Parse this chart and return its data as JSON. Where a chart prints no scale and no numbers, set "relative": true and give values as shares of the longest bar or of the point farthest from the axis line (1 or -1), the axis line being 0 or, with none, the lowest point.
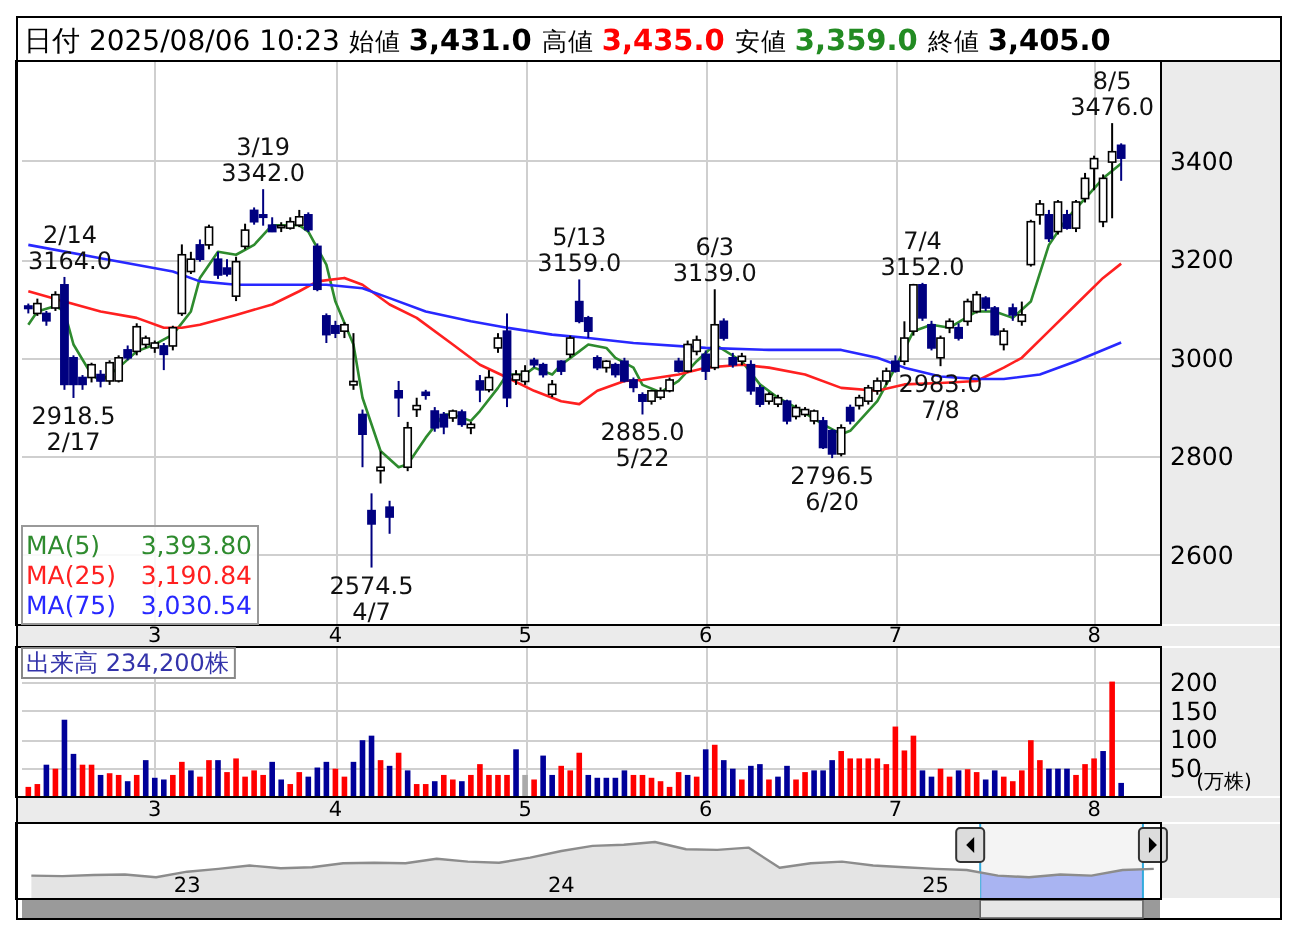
{
  "chart_data": [
    {
      "type": "candlestick",
      "title": "日付 2025/08/06 10:23 始値 3,431.0 高値 3,435.0 安値 3,359.0 終値 3,405.0",
      "categories": [
        null,
        null,
        null,
        null,
        null,
        null,
        null,
        null,
        null,
        null,
        null,
        null,
        null,
        null,
        "3",
        null,
        null,
        null,
        null,
        null,
        null,
        null,
        null,
        null,
        null,
        null,
        null,
        null,
        null,
        null,
        null,
        null,
        null,
        null,
        "4",
        null,
        null,
        null,
        null,
        null,
        null,
        null,
        null,
        null,
        null,
        null,
        null,
        null,
        null,
        null,
        null,
        null,
        null,
        null,
        null,
        "5",
        null,
        null,
        null,
        null,
        null,
        null,
        null,
        null,
        null,
        null,
        null,
        null,
        null,
        null,
        null,
        null,
        null,
        null,
        null,
        "6",
        null,
        null,
        null,
        null,
        null,
        null,
        null,
        null,
        null,
        null,
        null,
        null,
        null,
        null,
        null,
        null,
        null,
        null,
        null,
        null,
        "7",
        null,
        null,
        null,
        null,
        null,
        null,
        null,
        null,
        null,
        null,
        null,
        null,
        null,
        null,
        null,
        null,
        null,
        null,
        null,
        null,
        null,
        "8",
        null,
        null,
        null
      ],
      "ohlc": [
        [
          3105,
          3110,
          3090,
          3100
        ],
        [
          3090,
          3120,
          3085,
          3110
        ],
        [
          3090,
          3095,
          3065,
          3075
        ],
        [
          3101,
          3135,
          3095,
          3128
        ],
        [
          3148,
          3164,
          2935,
          2946
        ],
        [
          3000,
          3005,
          2918.5,
          2946
        ],
        [
          2960,
          2965,
          2935,
          2946
        ],
        [
          2960,
          2990,
          2950,
          2986
        ],
        [
          2966,
          2975,
          2940,
          2953
        ],
        [
          2953,
          2995,
          2945,
          2990
        ],
        [
          2953,
          3005,
          2950,
          3000
        ],
        [
          3016,
          3025,
          2995,
          3000
        ],
        [
          3013,
          3070,
          3005,
          3063
        ],
        [
          3027,
          3045,
          3020,
          3040
        ],
        [
          3020,
          3035,
          3010,
          3030
        ],
        [
          3024,
          3030,
          2975,
          3007
        ],
        [
          3024,
          3065,
          3015,
          3061
        ],
        [
          3090,
          3230,
          3085,
          3209
        ],
        [
          3175,
          3215,
          3170,
          3200
        ],
        [
          3229,
          3240,
          3195,
          3200
        ],
        [
          3229,
          3270,
          3220,
          3265
        ],
        [
          3200,
          3215,
          3160,
          3168
        ],
        [
          3182,
          3200,
          3165,
          3170
        ],
        [
          3125,
          3205,
          3115,
          3195
        ],
        [
          3226,
          3272,
          3220,
          3259
        ],
        [
          3299,
          3305,
          3270,
          3276
        ],
        [
          3290,
          3342,
          3268,
          3285
        ],
        [
          3269,
          3285,
          3255,
          3256
        ],
        [
          3265,
          3275,
          3255,
          3268
        ],
        [
          3263,
          3285,
          3260,
          3276
        ],
        [
          3269,
          3300,
          3265,
          3286
        ],
        [
          3290,
          3295,
          3255,
          3260
        ],
        [
          3226,
          3232,
          3135,
          3139
        ],
        [
          3085,
          3090,
          3030,
          3047
        ],
        [
          3065,
          3075,
          3040,
          3050
        ],
        [
          3054,
          3072,
          3040,
          3067
        ],
        [
          2945,
          3050,
          2935,
          2952
        ],
        [
          2885,
          2895,
          2778,
          2845
        ],
        [
          2690,
          2725,
          2574.5,
          2663
        ],
        [
          2771,
          2810,
          2745,
          2778
        ],
        [
          2697,
          2710,
          2643,
          2677
        ],
        [
          2933,
          2953,
          2880,
          2919
        ],
        [
          2778,
          2870,
          2770,
          2858
        ],
        [
          2895,
          2919,
          2880,
          2903
        ],
        [
          2930,
          2935,
          2915,
          2924
        ],
        [
          2892,
          2900,
          2850,
          2858
        ],
        [
          2885,
          2890,
          2845,
          2860
        ],
        [
          2878,
          2895,
          2870,
          2892
        ],
        [
          2890,
          2895,
          2860,
          2865
        ],
        [
          2858,
          2870,
          2845,
          2865
        ],
        [
          2953,
          2965,
          2910,
          2935
        ],
        [
          2935,
          2975,
          2930,
          2960
        ],
        [
          3020,
          3050,
          3010,
          3040
        ],
        [
          3054,
          3090,
          2900,
          2919
        ],
        [
          2955,
          2975,
          2945,
          2966
        ],
        [
          2952,
          2985,
          2945,
          2973
        ],
        [
          2995,
          3000,
          2980,
          2986
        ],
        [
          2986,
          2990,
          2960,
          2966
        ],
        [
          2926,
          2955,
          2920,
          2946
        ],
        [
          2993,
          2995,
          2965,
          2973
        ],
        [
          3007,
          3045,
          3000,
          3040
        ],
        [
          3114,
          3159,
          3070,
          3074
        ],
        [
          3081,
          3085,
          3040,
          3054
        ],
        [
          3000,
          3005,
          2975,
          2980
        ],
        [
          2980,
          2995,
          2970,
          2993
        ],
        [
          2986,
          2990,
          2960,
          2966
        ],
        [
          2993,
          3000,
          2950,
          2953
        ],
        [
          2955,
          2960,
          2930,
          2940
        ],
        [
          2925,
          2930,
          2885,
          2912
        ],
        [
          2912,
          2935,
          2905,
          2933
        ],
        [
          2920,
          2940,
          2915,
          2933
        ],
        [
          2933,
          2960,
          2930,
          2955
        ],
        [
          2993,
          3000,
          2970,
          2973
        ],
        [
          2973,
          3035,
          2970,
          3027
        ],
        [
          3013,
          3045,
          3005,
          3036
        ],
        [
          3007,
          3015,
          2955,
          2973
        ],
        [
          2980,
          3139,
          2975,
          3067
        ],
        [
          3074,
          3080,
          3035,
          3040
        ],
        [
          3000,
          3010,
          2980,
          2986
        ],
        [
          2993,
          3010,
          2985,
          3003
        ],
        [
          2986,
          2995,
          2925,
          2933
        ],
        [
          2939,
          2945,
          2900,
          2906
        ],
        [
          2912,
          2930,
          2905,
          2926
        ],
        [
          2906,
          2925,
          2900,
          2919
        ],
        [
          2912,
          2915,
          2865,
          2872
        ],
        [
          2881,
          2905,
          2875,
          2899
        ],
        [
          2885,
          2900,
          2880,
          2895
        ],
        [
          2872,
          2895,
          2865,
          2892
        ],
        [
          2872,
          2880,
          2815,
          2818
        ],
        [
          2852,
          2855,
          2796.5,
          2805
        ],
        [
          2805,
          2865,
          2800,
          2858
        ],
        [
          2899,
          2905,
          2865,
          2872
        ],
        [
          2903,
          2925,
          2895,
          2919
        ],
        [
          2912,
          2945,
          2905,
          2939
        ],
        [
          2933,
          2960,
          2925,
          2953
        ],
        [
          2953,
          2980,
          2945,
          2973
        ],
        [
          2993,
          3005,
          2970,
          2973
        ],
        [
          2993,
          3074,
          2985,
          3040
        ],
        [
          3054,
          3150,
          3045,
          3148
        ],
        [
          3148,
          3152,
          3075,
          3081
        ],
        [
          3067,
          3075,
          3015,
          3020
        ],
        [
          3000,
          3045,
          2983,
          3040
        ],
        [
          3061,
          3080,
          3050,
          3074
        ],
        [
          3061,
          3070,
          3035,
          3040
        ],
        [
          3074,
          3120,
          3065,
          3114
        ],
        [
          3094,
          3135,
          3090,
          3128
        ],
        [
          3121,
          3125,
          3095,
          3101
        ],
        [
          3101,
          3105,
          3045,
          3047
        ],
        [
          3027,
          3060,
          3015,
          3054
        ],
        [
          3101,
          3110,
          3075,
          3087
        ],
        [
          3074,
          3114,
          3065,
          3087
        ],
        [
          3189,
          3280,
          3185,
          3276
        ],
        [
          3290,
          3320,
          3270,
          3312
        ],
        [
          3290,
          3300,
          3235,
          3242
        ],
        [
          3256,
          3320,
          3250,
          3316
        ],
        [
          3290,
          3300,
          3260,
          3263
        ],
        [
          3263,
          3320,
          3255,
          3316
        ],
        [
          3323,
          3375,
          3315,
          3364
        ],
        [
          3384,
          3410,
          3340,
          3404
        ],
        [
          3276,
          3372,
          3265,
          3364
        ],
        [
          3397,
          3476,
          3283,
          3418
        ],
        [
          3431,
          3435,
          3359,
          3405
        ]
      ],
      "colors": [
        "#000080",
        "#ffffff",
        "#000080",
        "#ffffff",
        "#000080",
        "#000080",
        "#000080",
        "#ffffff",
        "#000080",
        "#ffffff",
        "#ffffff",
        "#000080",
        "#ffffff",
        "#ffffff",
        "#ffffff",
        "#000080",
        "#ffffff",
        "#ffffff",
        "#ffffff",
        "#000080",
        "#ffffff",
        "#000080",
        "#000080",
        "#ffffff",
        "#ffffff",
        "#000080",
        "#000080",
        "#000080",
        "#ffffff",
        "#ffffff",
        "#ffffff",
        "#000080",
        "#000080",
        "#000080",
        "#000080",
        "#ffffff",
        "#ffffff",
        "#000080",
        "#000080",
        "#ffffff",
        "#000080",
        "#000080",
        "#ffffff",
        "#ffffff",
        "#000080",
        "#000080",
        "#000080",
        "#ffffff",
        "#000080",
        "#ffffff",
        "#000080",
        "#ffffff",
        "#ffffff",
        "#000080",
        "#ffffff",
        "#ffffff",
        "#000080",
        "#000080",
        "#ffffff",
        "#000080",
        "#ffffff",
        "#000080",
        "#000080",
        "#000080",
        "#ffffff",
        "#000080",
        "#000080",
        "#000080",
        "#000080",
        "#ffffff",
        "#ffffff",
        "#ffffff",
        "#000080",
        "#ffffff",
        "#ffffff",
        "#000080",
        "#ffffff",
        "#000080",
        "#000080",
        "#ffffff",
        "#000080",
        "#000080",
        "#ffffff",
        "#ffffff",
        "#000080",
        "#ffffff",
        "#ffffff",
        "#ffffff",
        "#000080",
        "#000080",
        "#ffffff",
        "#000080",
        "#ffffff",
        "#ffffff",
        "#ffffff",
        "#ffffff",
        "#000080",
        "#ffffff",
        "#ffffff",
        "#000080",
        "#000080",
        "#ffffff",
        "#ffffff",
        "#000080",
        "#ffffff",
        "#ffffff",
        "#000080",
        "#000080",
        "#ffffff",
        "#000080",
        "#ffffff",
        "#ffffff",
        "#ffffff",
        "#000080",
        "#ffffff",
        "#000080",
        "#ffffff",
        "#ffffff",
        "#ffffff",
        "#ffffff",
        "#ffffff",
        "#000080"
      ],
      "series": [
        {
          "name": "MA(5)",
          "type": "line",
          "color": "#2e8b2e",
          "values": [
            3067,
            3094,
            null,
            3105,
            3094,
            3027,
            null,
            2966,
            2953,
            null,
            2980,
            null,
            3013,
            null,
            3027,
            null,
            3047,
            null,
            3094,
            3162,
            null,
            3215,
            null,
            3209,
            null,
            3229,
            null,
            3269,
            null,
            null,
            3269,
            3256,
            null,
            3189,
            3114,
            null,
            3027,
            2919,
            null,
            2811,
            null,
            2778,
            2784,
            null,
            2838,
            null,
            2885,
            2885,
            null,
            2872,
            2892,
            null,
            2939,
            2966,
            null,
            2966,
            2980,
            null,
            2966,
            2986,
            null,
            3013,
            3027,
            null,
            3020,
            3000,
            null,
            2980,
            2945,
            null,
            2930,
            null,
            2953,
            null,
            2993,
            null,
            3027,
            null,
            null,
            2993,
            null,
            2946,
            null,
            2919,
            null,
            2899,
            null,
            null,
            2865,
            null,
            2845,
            2852,
            null,
            null,
            2912,
            null,
            2980,
            null,
            3054,
            null,
            3067,
            null,
            3061,
            null,
            null,
            3094,
            null,
            3094,
            null,
            3081,
            null,
            3114,
            null,
            3229,
            null,
            3283,
            null,
            3323,
            null,
            3364,
            null,
            3394
          ]
        },
        {
          "name": "MA(25)",
          "type": "line",
          "color": "#ff2020",
          "values": [
            3135,
            null,
            null,
            null,
            3114,
            null,
            null,
            null,
            3094,
            null,
            null,
            null,
            3081,
            null,
            null,
            3061,
            null,
            3061,
            null,
            3067,
            null,
            null,
            null,
            3087,
            null,
            null,
            null,
            3108,
            null,
            null,
            3135,
            null,
            3155,
            null,
            null,
            3162,
            null,
            3148,
            null,
            null,
            3108,
            null,
            null,
            3081,
            null,
            null,
            null,
            3027,
            null,
            null,
            2986,
            null,
            null,
            2960,
            null,
            null,
            2933,
            null,
            null,
            2912,
            null,
            2906,
            null,
            2933,
            null,
            null,
            2953,
            null,
            2955,
            null,
            null,
            null,
            2966,
            null,
            null,
            2980,
            null,
            null,
            null,
            2986,
            null,
            null,
            2980,
            null,
            null,
            null,
            2966,
            null,
            null,
            null,
            2939,
            null,
            null,
            null,
            2933,
            null,
            null,
            2946,
            null,
            null,
            null,
            2949,
            null,
            null,
            null,
            2953,
            null,
            null,
            2980,
            null,
            3000,
            null,
            null,
            3054,
            null,
            null,
            3108,
            null,
            null,
            3162,
            null,
            3191
          ]
        },
        {
          "name": "MA(75)",
          "type": "line",
          "color": "#2828ff",
          "values": [
            3229,
            null,
            null,
            null,
            null,
            null,
            null,
            null,
            3202,
            null,
            null,
            null,
            null,
            null,
            null,
            null,
            3175,
            null,
            null,
            3155,
            null,
            null,
            null,
            3148,
            null,
            null,
            null,
            null,
            3148,
            null,
            null,
            null,
            null,
            3148,
            null,
            null,
            null,
            3141,
            null,
            null,
            3121,
            null,
            null,
            null,
            3094,
            null,
            null,
            null,
            null,
            3074,
            null,
            null,
            null,
            3061,
            null,
            null,
            null,
            null,
            3047,
            null,
            null,
            null,
            3040,
            null,
            null,
            null,
            null,
            3030,
            null,
            null,
            null,
            null,
            null,
            null,
            null,
            3020,
            null,
            null,
            null,
            null,
            null,
            null,
            3016,
            null,
            null,
            null,
            null,
            null,
            null,
            null,
            3016,
            null,
            null,
            null,
            3000,
            null,
            null,
            2980,
            null,
            null,
            null,
            2962,
            null,
            null,
            null,
            2957,
            null,
            null,
            2957,
            null,
            null,
            null,
            2966,
            null,
            null,
            null,
            2993,
            null,
            null,
            null,
            null,
            3031
          ]
        }
      ],
      "annotations": [
        {
          "text": "2/14\n3164.0",
          "y": 3164
        },
        {
          "text": "2918.5\n2/17",
          "y": 2918.5
        },
        {
          "text": "3/19\n3342.0",
          "y": 3342
        },
        {
          "text": "2574.5\n4/7",
          "y": 2574.5
        },
        {
          "text": "5/13\n3159.0",
          "y": 3159
        },
        {
          "text": "2885.0\n5/22",
          "y": 2885
        },
        {
          "text": "6/3\n3139.0",
          "y": 3139
        },
        {
          "text": "2796.5\n6/20",
          "y": 2796.5
        },
        {
          "text": "7/4\n3152.0",
          "y": 3152
        },
        {
          "text": "2983.0\n7/8",
          "y": 2983
        },
        {
          "text": "8/5\n3476.0",
          "y": 3476
        },
        "3,393.80",
        "3,190.84",
        "3,030.54"
      ],
      "ylim": [
        2460,
        3600
      ],
      "yticks": [
        2600,
        2800,
        3000,
        3200,
        3400
      ],
      "grid": true,
      "legend": "bottom left"
    },
    {
      "type": "bar",
      "title": "出来高 234,200株",
      "ylabel": "(万株)",
      "categories": [
        null,
        null,
        null,
        null,
        null,
        null,
        null,
        null,
        null,
        null,
        null,
        null,
        null,
        null,
        "3",
        null,
        null,
        null,
        null,
        null,
        null,
        null,
        null,
        null,
        null,
        null,
        null,
        null,
        null,
        null,
        null,
        null,
        null,
        null,
        "4",
        null,
        null,
        null,
        null,
        null,
        null,
        null,
        null,
        null,
        null,
        null,
        null,
        null,
        null,
        null,
        null,
        null,
        null,
        null,
        null,
        "5",
        null,
        null,
        null,
        null,
        null,
        null,
        null,
        null,
        null,
        null,
        null,
        null,
        null,
        null,
        null,
        null,
        null,
        null,
        null,
        "6",
        null,
        null,
        null,
        null,
        null,
        null,
        null,
        null,
        null,
        null,
        null,
        null,
        null,
        null,
        null,
        null,
        null,
        null,
        null,
        null,
        "7",
        null,
        null,
        null,
        null,
        null,
        null,
        null,
        null,
        null,
        null,
        null,
        null,
        null,
        null,
        null,
        null,
        null,
        null,
        null,
        null,
        null,
        "8",
        null,
        null,
        null
      ],
      "values": [
        16,
        21,
        55,
        48,
        134,
        74,
        55,
        55,
        37,
        40,
        37,
        26,
        37,
        63,
        32,
        29,
        37,
        60,
        45,
        34,
        63,
        63,
        42,
        66,
        34,
        45,
        37,
        60,
        29,
        21,
        42,
        34,
        50,
        60,
        48,
        34,
        60,
        98,
        106,
        63,
        53,
        76,
        45,
        21,
        21,
        26,
        37,
        29,
        26,
        37,
        56,
        37,
        37,
        37,
        82,
        37,
        29,
        71,
        37,
        53,
        45,
        76,
        37,
        32,
        32,
        32,
        45,
        37,
        37,
        32,
        26,
        16,
        42,
        37,
        34,
        82,
        90,
        63,
        48,
        29,
        53,
        56,
        29,
        34,
        53,
        29,
        42,
        45,
        45,
        63,
        79,
        66,
        66,
        66,
        66,
        56,
        122,
        80,
        106,
        45,
        34,
        48,
        34,
        45,
        47,
        42,
        29,
        45,
        34,
        26,
        45,
        98,
        63,
        48,
        48,
        48,
        37,
        56,
        66,
        79,
        201,
        23
      ],
      "colors": [
        "#ff0000",
        "#ff0000",
        "#000099",
        "#ff0000",
        "#000099",
        "#000099",
        "#ff0000",
        "#ff0000",
        "#000099",
        "#ff0000",
        "#ff0000",
        "#000099",
        "#ff0000",
        "#000099",
        "#000099",
        "#000099",
        "#ff0000",
        "#ff0000",
        "#000099",
        "#ff0000",
        "#ff0000",
        "#000099",
        "#ff0000",
        "#ff0000",
        "#ff0000",
        "#ff0000",
        "#ff0000",
        "#000099",
        "#000099",
        "#ff0000",
        "#ff0000",
        "#000099",
        "#000099",
        "#000099",
        "#ff0000",
        "#ff0000",
        "#000099",
        "#000099",
        "#000099",
        "#ff0000",
        "#000099",
        "#ff0000",
        "#000099",
        "#ff0000",
        "#ff0000",
        "#000099",
        "#ff0000",
        "#ff0000",
        "#000099",
        "#ff0000",
        "#ff0000",
        "#ff0000",
        "#ff0000",
        "#ff0000",
        "#000099",
        "#aaaaaa",
        "#ff0000",
        "#000099",
        "#000099",
        "#ff0000",
        "#ff0000",
        "#ff0000",
        "#000099",
        "#000099",
        "#000099",
        "#000099",
        "#000099",
        "#ff0000",
        "#ff0000",
        "#ff0000",
        "#ff0000",
        "#ff0000",
        "#ff0000",
        "#000099",
        "#ff0000",
        "#000099",
        "#ff0000",
        "#000099",
        "#000099",
        "#ff0000",
        "#000099",
        "#000099",
        "#ff0000",
        "#000099",
        "#000099",
        "#ff0000",
        "#ff0000",
        "#000099",
        "#000099",
        "#000099",
        "#ff0000",
        "#ff0000",
        "#ff0000",
        "#ff0000",
        "#ff0000",
        "#ff0000",
        "#ff0000",
        "#ff0000",
        "#ff0000",
        "#000099",
        "#000099",
        "#ff0000",
        "#ff0000",
        "#000099",
        "#ff0000",
        "#ff0000",
        "#000099",
        "#000099",
        "#ff0000",
        "#ff0000",
        "#ff0000",
        "#ff0000",
        "#ff0000",
        "#000099",
        "#000099",
        "#000099",
        "#ff0000",
        "#ff0000",
        "#ff0000",
        "#000099",
        "#ff0000",
        "#000099"
      ],
      "ylim": [
        0,
        260
      ],
      "yticks": [
        50,
        100,
        150,
        200
      ],
      "grid": true
    },
    {
      "type": "area",
      "relative": true,
      "color": "#8c8c8c",
      "categories": [
        null,
        null,
        null,
        null,
        null,
        "23",
        null,
        null,
        null,
        null,
        null,
        null,
        null,
        null,
        null,
        null,
        null,
        "24",
        null,
        null,
        null,
        null,
        null,
        null,
        null,
        null,
        null,
        null,
        null,
        "25",
        null,
        null,
        null,
        null,
        null,
        null,
        null
      ],
      "values": [
        0.4,
        0.39,
        0.41,
        0.42,
        0.37,
        0.47,
        0.52,
        0.58,
        0.53,
        0.55,
        0.62,
        0.63,
        0.62,
        0.7,
        0.65,
        0.63,
        0.72,
        0.84,
        0.93,
        0.95,
        1,
        0.87,
        0.86,
        0.9,
        0.54,
        0.62,
        0.65,
        0.58,
        0.55,
        0.52,
        0.5,
        0.4,
        0.37,
        0.42,
        0.4,
        0.5,
        0.52
      ]
    }
  ]
}
